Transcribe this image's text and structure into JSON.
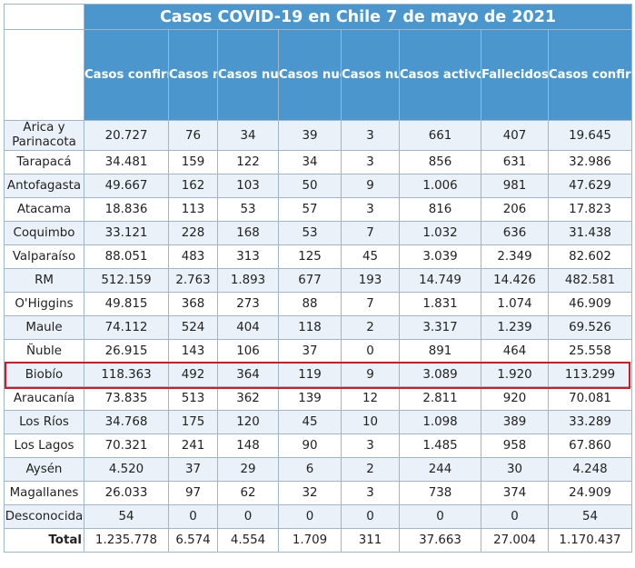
{
  "title": "Casos COVID-19 en Chile 7 de mayo de 2021",
  "columns": [
    "Casos confirmados acumulados",
    "Casos nuevos totales",
    "Casos nuevos con síntomas",
    "Casos nuevos sin síntomas",
    "Casos nuevos sin notificar *",
    "Casos activos confirmados **",
    "Fallecidos totales ***",
    "Casos confirmados recuperados ****"
  ],
  "rows": [
    {
      "region": "Arica y Parinacota",
      "values": [
        "20.727",
        "76",
        "34",
        "39",
        "3",
        "661",
        "407",
        "19.645"
      ]
    },
    {
      "region": "Tarapacá",
      "values": [
        "34.481",
        "159",
        "122",
        "34",
        "3",
        "856",
        "631",
        "32.986"
      ]
    },
    {
      "region": "Antofagasta",
      "values": [
        "49.667",
        "162",
        "103",
        "50",
        "9",
        "1.006",
        "981",
        "47.629"
      ]
    },
    {
      "region": "Atacama",
      "values": [
        "18.836",
        "113",
        "53",
        "57",
        "3",
        "816",
        "206",
        "17.823"
      ]
    },
    {
      "region": "Coquimbo",
      "values": [
        "33.121",
        "228",
        "168",
        "53",
        "7",
        "1.032",
        "636",
        "31.438"
      ]
    },
    {
      "region": "Valparaíso",
      "values": [
        "88.051",
        "483",
        "313",
        "125",
        "45",
        "3.039",
        "2.349",
        "82.602"
      ]
    },
    {
      "region": "RM",
      "values": [
        "512.159",
        "2.763",
        "1.893",
        "677",
        "193",
        "14.749",
        "14.426",
        "482.581"
      ]
    },
    {
      "region": "O'Higgins",
      "values": [
        "49.815",
        "368",
        "273",
        "88",
        "7",
        "1.831",
        "1.074",
        "46.909"
      ]
    },
    {
      "region": "Maule",
      "values": [
        "74.112",
        "524",
        "404",
        "118",
        "2",
        "3.317",
        "1.239",
        "69.526"
      ]
    },
    {
      "region": "Ñuble",
      "values": [
        "26.915",
        "143",
        "106",
        "37",
        "0",
        "891",
        "464",
        "25.558"
      ]
    },
    {
      "region": "Biobío",
      "values": [
        "118.363",
        "492",
        "364",
        "119",
        "9",
        "3.089",
        "1.920",
        "113.299"
      ]
    },
    {
      "region": "Araucanía",
      "values": [
        "73.835",
        "513",
        "362",
        "139",
        "12",
        "2.811",
        "920",
        "70.081"
      ]
    },
    {
      "region": "Los Ríos",
      "values": [
        "34.768",
        "175",
        "120",
        "45",
        "10",
        "1.098",
        "389",
        "33.289"
      ]
    },
    {
      "region": "Los Lagos",
      "values": [
        "70.321",
        "241",
        "148",
        "90",
        "3",
        "1.485",
        "958",
        "67.860"
      ]
    },
    {
      "region": "Aysén",
      "values": [
        "4.520",
        "37",
        "29",
        "6",
        "2",
        "244",
        "30",
        "4.248"
      ]
    },
    {
      "region": "Magallanes",
      "values": [
        "26.033",
        "97",
        "62",
        "32",
        "3",
        "738",
        "374",
        "24.909"
      ]
    },
    {
      "region": "Desconocida",
      "values": [
        "54",
        "0",
        "0",
        "0",
        "0",
        "0",
        "0",
        "54"
      ]
    }
  ],
  "total": {
    "label": "Total",
    "values": [
      "1.235.778",
      "6.574",
      "4.554",
      "1.709",
      "311",
      "37.663",
      "27.004",
      "1.170.437"
    ]
  },
  "highlighted_region": "Biobío",
  "colors": {
    "header_bg": "#4b97cd",
    "header_text": "#ffffff",
    "stripe": "#eaf1f8",
    "highlight_border": "#d51b22"
  }
}
